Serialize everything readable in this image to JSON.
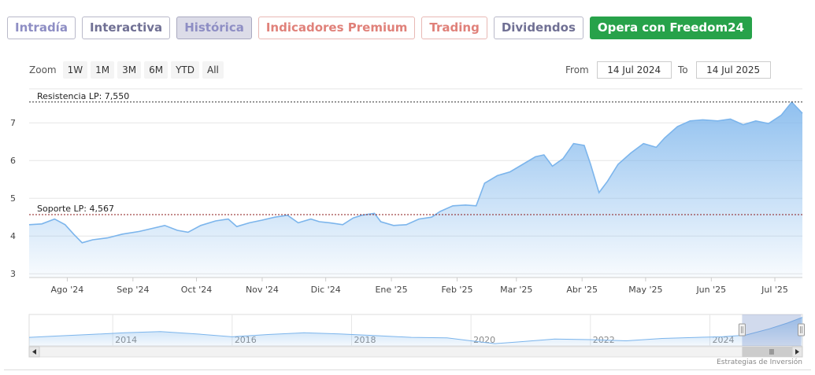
{
  "tabs": [
    {
      "label": "Intradía",
      "color": "#8e8ec4",
      "bg": "#ffffff",
      "border": "#b9b9c9"
    },
    {
      "label": "Interactiva",
      "color": "#707094",
      "bg": "#ffffff",
      "border": "#b9b9c9"
    },
    {
      "label": "Histórica",
      "color": "#8e8ec4",
      "bg": "#dcdce8",
      "border": "#a9a9c0",
      "active": true
    },
    {
      "label": "Indicadores Premium",
      "color": "#e0817a",
      "bg": "#ffffff",
      "border": "#e8b9b4"
    },
    {
      "label": "Trading",
      "color": "#e0817a",
      "bg": "#ffffff",
      "border": "#e8b9b4"
    },
    {
      "label": "Dividendos",
      "color": "#707094",
      "bg": "#ffffff",
      "border": "#b9b9c9"
    },
    {
      "label": "Opera con Freedom24",
      "color": "#ffffff",
      "bg": "#27a24a",
      "border": "#27a24a"
    }
  ],
  "zoom": {
    "label": "Zoom",
    "options": [
      "1W",
      "1M",
      "3M",
      "6M",
      "YTD",
      "All"
    ]
  },
  "range": {
    "from_label": "From",
    "from_value": "14 Jul 2024",
    "to_label": "To",
    "to_value": "14 Jul 2025"
  },
  "credit": "Estrategias de Inversión",
  "chart_data": {
    "type": "area",
    "title": "",
    "xlabel": "",
    "ylabel": "",
    "ylim": [
      2.9,
      7.9
    ],
    "yticks": [
      3,
      4,
      5,
      6,
      7
    ],
    "xtick_labels": [
      "Ago '24",
      "Sep '24",
      "Oct '24",
      "Nov '24",
      "Dic '24",
      "Ene '25",
      "Feb '25",
      "Mar '25",
      "Abr '25",
      "May '25",
      "Jun '25",
      "Jul '25"
    ],
    "xtick_dates": [
      "2024-08-01",
      "2024-09-01",
      "2024-10-01",
      "2024-11-01",
      "2024-12-01",
      "2025-01-01",
      "2025-02-01",
      "2025-03-01",
      "2025-04-01",
      "2025-05-01",
      "2025-06-01",
      "2025-07-01"
    ],
    "xlim": [
      "2024-07-14",
      "2025-07-14"
    ],
    "series": [
      {
        "color": "#7cb5ec",
        "points": [
          [
            "2024-07-14",
            4.3
          ],
          [
            "2024-07-20",
            4.32
          ],
          [
            "2024-07-26",
            4.45
          ],
          [
            "2024-07-31",
            4.3
          ],
          [
            "2024-08-04",
            4.05
          ],
          [
            "2024-08-08",
            3.82
          ],
          [
            "2024-08-13",
            3.9
          ],
          [
            "2024-08-20",
            3.95
          ],
          [
            "2024-08-27",
            4.05
          ],
          [
            "2024-09-04",
            4.12
          ],
          [
            "2024-09-10",
            4.2
          ],
          [
            "2024-09-16",
            4.28
          ],
          [
            "2024-09-22",
            4.15
          ],
          [
            "2024-09-27",
            4.1
          ],
          [
            "2024-10-03",
            4.28
          ],
          [
            "2024-10-10",
            4.4
          ],
          [
            "2024-10-16",
            4.45
          ],
          [
            "2024-10-20",
            4.25
          ],
          [
            "2024-10-26",
            4.35
          ],
          [
            "2024-11-01",
            4.42
          ],
          [
            "2024-11-07",
            4.5
          ],
          [
            "2024-11-13",
            4.55
          ],
          [
            "2024-11-18",
            4.35
          ],
          [
            "2024-11-24",
            4.45
          ],
          [
            "2024-11-28",
            4.38
          ],
          [
            "2024-12-03",
            4.35
          ],
          [
            "2024-12-09",
            4.3
          ],
          [
            "2024-12-14",
            4.48
          ],
          [
            "2024-12-18",
            4.55
          ],
          [
            "2024-12-24",
            4.6
          ],
          [
            "2024-12-27",
            4.38
          ],
          [
            "2025-01-02",
            4.28
          ],
          [
            "2025-01-08",
            4.3
          ],
          [
            "2025-01-14",
            4.45
          ],
          [
            "2025-01-20",
            4.5
          ],
          [
            "2025-01-24",
            4.65
          ],
          [
            "2025-01-30",
            4.8
          ],
          [
            "2025-02-05",
            4.82
          ],
          [
            "2025-02-10",
            4.8
          ],
          [
            "2025-02-14",
            5.4
          ],
          [
            "2025-02-20",
            5.6
          ],
          [
            "2025-02-26",
            5.7
          ],
          [
            "2025-03-04",
            5.9
          ],
          [
            "2025-03-10",
            6.1
          ],
          [
            "2025-03-14",
            6.15
          ],
          [
            "2025-03-18",
            5.85
          ],
          [
            "2025-03-23",
            6.05
          ],
          [
            "2025-03-28",
            6.45
          ],
          [
            "2025-04-02",
            6.4
          ],
          [
            "2025-04-05",
            5.9
          ],
          [
            "2025-04-09",
            5.15
          ],
          [
            "2025-04-13",
            5.45
          ],
          [
            "2025-04-18",
            5.9
          ],
          [
            "2025-04-24",
            6.2
          ],
          [
            "2025-04-30",
            6.45
          ],
          [
            "2025-05-06",
            6.35
          ],
          [
            "2025-05-10",
            6.6
          ],
          [
            "2025-05-16",
            6.9
          ],
          [
            "2025-05-22",
            7.05
          ],
          [
            "2025-05-28",
            7.08
          ],
          [
            "2025-06-04",
            7.05
          ],
          [
            "2025-06-10",
            7.1
          ],
          [
            "2025-06-16",
            6.95
          ],
          [
            "2025-06-22",
            7.05
          ],
          [
            "2025-06-28",
            6.98
          ],
          [
            "2025-07-04",
            7.2
          ],
          [
            "2025-07-09",
            7.55
          ],
          [
            "2025-07-14",
            7.25
          ]
        ]
      }
    ],
    "reference_lines": [
      {
        "label": "Resistencia LP: 7,550",
        "value": 7.55,
        "color": "#333333",
        "dash": "dotted"
      },
      {
        "label": "Soporte LP: 4,567",
        "value": 4.567,
        "color": "#8b1a1a",
        "dash": "dotted"
      }
    ],
    "navigator": {
      "tick_labels": [
        "2014",
        "2016",
        "2018",
        "2020",
        "2022",
        "2024"
      ],
      "range": [
        2012.6,
        2025.55
      ],
      "selected": [
        2024.54,
        2025.53
      ],
      "points": [
        [
          2012.6,
          4.0
        ],
        [
          2013.0,
          4.2
        ],
        [
          2013.6,
          4.5
        ],
        [
          2014.2,
          4.8
        ],
        [
          2014.8,
          5.0
        ],
        [
          2015.4,
          4.6
        ],
        [
          2016.0,
          4.1
        ],
        [
          2016.6,
          4.5
        ],
        [
          2017.2,
          4.8
        ],
        [
          2017.8,
          4.6
        ],
        [
          2018.4,
          4.3
        ],
        [
          2019.0,
          4.0
        ],
        [
          2019.6,
          3.9
        ],
        [
          2020.0,
          3.4
        ],
        [
          2020.4,
          2.9
        ],
        [
          2020.8,
          3.2
        ],
        [
          2021.4,
          3.7
        ],
        [
          2022.0,
          3.6
        ],
        [
          2022.6,
          3.4
        ],
        [
          2023.2,
          3.8
        ],
        [
          2023.8,
          4.0
        ],
        [
          2024.2,
          4.1
        ],
        [
          2024.6,
          4.4
        ],
        [
          2025.0,
          5.5
        ],
        [
          2025.3,
          6.5
        ],
        [
          2025.55,
          7.5
        ]
      ]
    }
  }
}
